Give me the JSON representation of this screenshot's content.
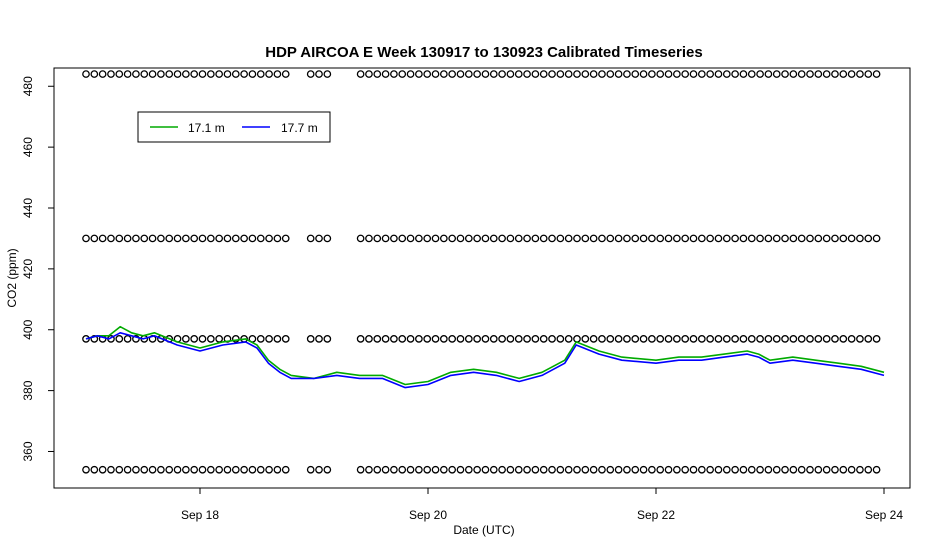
{
  "chart_data": {
    "type": "line",
    "title": "HDP AIRCOA E  Week 130917 to 130923  Calibrated Timeseries",
    "xlabel": "Date (UTC)",
    "ylabel": "CO2 (ppm)",
    "xlim_days": [
      17.0,
      24.0
    ],
    "ylim": [
      348,
      486
    ],
    "x_ticks": [
      {
        "day": 18,
        "label": "Sep 18"
      },
      {
        "day": 20,
        "label": "Sep 20"
      },
      {
        "day": 22,
        "label": "Sep 22"
      },
      {
        "day": 24,
        "label": "Sep 24"
      }
    ],
    "y_ticks": [
      {
        "value": 360,
        "label": "360"
      },
      {
        "value": 380,
        "label": "380"
      },
      {
        "value": 400,
        "label": "400"
      },
      {
        "value": 420,
        "label": "420"
      },
      {
        "value": 440,
        "label": "440"
      },
      {
        "value": 460,
        "label": "460"
      },
      {
        "value": 480,
        "label": "480"
      }
    ],
    "legend": {
      "placement": "top-left",
      "entries": [
        {
          "name": "17.1 m",
          "color": "#00aa00"
        },
        {
          "name": "17.7 m",
          "color": "#0000ff"
        }
      ]
    },
    "series": [
      {
        "name": "17.1 m",
        "color": "#00aa00",
        "x_day": [
          17.0,
          17.1,
          17.2,
          17.3,
          17.4,
          17.5,
          17.6,
          17.8,
          18.0,
          18.2,
          18.4,
          18.5,
          18.6,
          18.7,
          18.8,
          19.0,
          19.2,
          19.4,
          19.6,
          19.8,
          20.0,
          20.2,
          20.4,
          20.6,
          20.8,
          21.0,
          21.2,
          21.3,
          21.5,
          21.7,
          22.0,
          22.2,
          22.4,
          22.6,
          22.8,
          22.9,
          23.0,
          23.2,
          23.4,
          23.6,
          23.8,
          24.0
        ],
        "values": [
          397,
          398,
          398,
          401,
          399,
          398,
          399,
          396,
          394,
          396,
          397,
          395,
          390,
          387,
          385,
          384,
          386,
          385,
          385,
          382,
          383,
          386,
          387,
          386,
          384,
          386,
          390,
          396,
          393,
          391,
          390,
          391,
          391,
          392,
          393,
          392,
          390,
          391,
          390,
          389,
          388,
          386
        ]
      },
      {
        "name": "17.7 m",
        "color": "#0000ff",
        "x_day": [
          17.0,
          17.1,
          17.2,
          17.3,
          17.4,
          17.5,
          17.6,
          17.8,
          18.0,
          18.2,
          18.4,
          18.5,
          18.6,
          18.7,
          18.8,
          19.0,
          19.2,
          19.4,
          19.6,
          19.8,
          20.0,
          20.2,
          20.4,
          20.6,
          20.8,
          21.0,
          21.2,
          21.3,
          21.5,
          21.7,
          22.0,
          22.2,
          22.4,
          22.6,
          22.8,
          22.9,
          23.0,
          23.2,
          23.4,
          23.6,
          23.8,
          24.0
        ],
        "values": [
          397,
          398,
          397,
          399,
          398,
          397,
          398,
          395,
          393,
          395,
          396,
          394,
          389,
          386,
          384,
          384,
          385,
          384,
          384,
          381,
          382,
          385,
          386,
          385,
          383,
          385,
          389,
          395,
          392,
          390,
          389,
          390,
          390,
          391,
          392,
          391,
          389,
          390,
          389,
          388,
          387,
          385
        ]
      }
    ],
    "reference_levels": {
      "marker": "open-circle",
      "color": "#000000",
      "values": [
        354,
        397,
        430,
        484
      ],
      "gaps_days": [
        [
          18.77,
          18.92
        ],
        [
          19.05,
          19.07
        ],
        [
          19.09,
          19.11
        ],
        [
          19.18,
          19.35
        ]
      ],
      "spacing_days": 0.073
    }
  }
}
